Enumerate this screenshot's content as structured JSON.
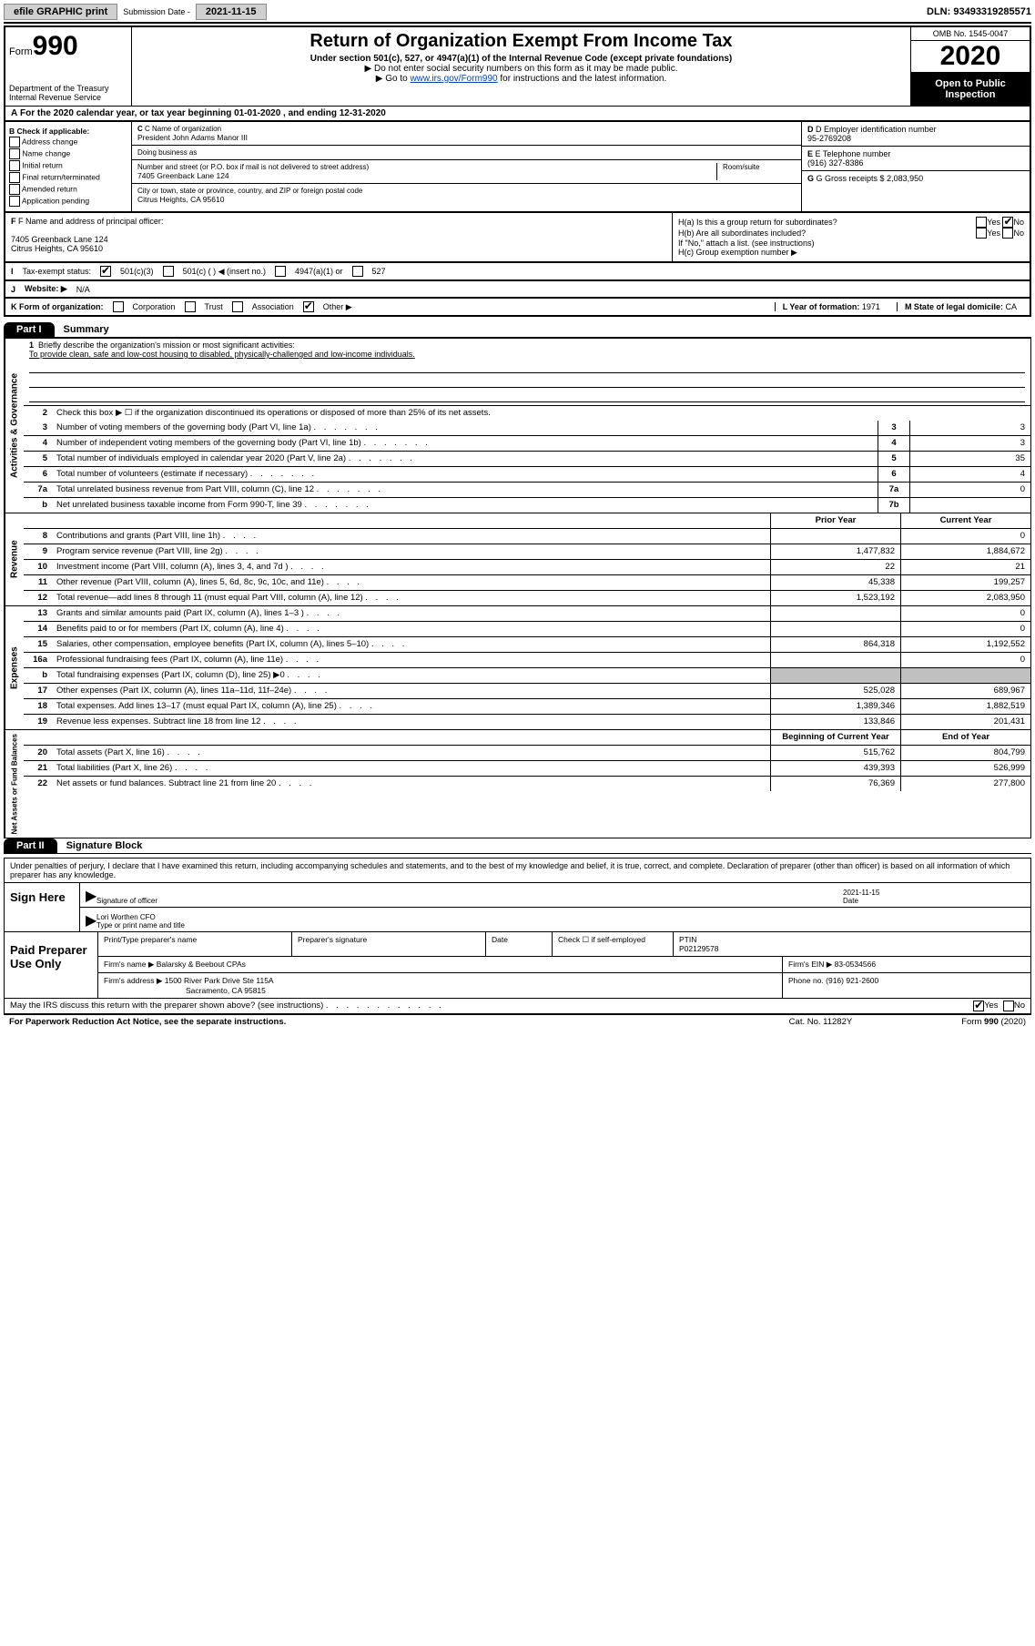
{
  "colors": {
    "black": "#000000",
    "white": "#ffffff",
    "gray_btn": "#d0d0d0",
    "gray_shade": "#c0c0c0",
    "link": "#0645ad"
  },
  "top": {
    "efile": "efile GRAPHIC print",
    "sub_lbl": "Submission Date -",
    "sub_date": "2021-11-15",
    "dln": "DLN: 93493319285571"
  },
  "header": {
    "form_word": "Form",
    "form_num": "990",
    "dept": "Department of the Treasury",
    "irs": "Internal Revenue Service",
    "title": "Return of Organization Exempt From Income Tax",
    "sub1": "Under section 501(c), 527, or 4947(a)(1) of the Internal Revenue Code (except private foundations)",
    "sub2": "▶ Do not enter social security numbers on this form as it may be made public.",
    "sub3a": "▶ Go to ",
    "sub3link": "www.irs.gov/Form990",
    "sub3b": " for instructions and the latest information.",
    "omb": "OMB No. 1545-0047",
    "year": "2020",
    "open": "Open to Public Inspection"
  },
  "row_a": "For the 2020 calendar year, or tax year beginning 01-01-2020   , and ending 12-31-2020",
  "row_a_lbl": "A",
  "col_b": {
    "hdr": "B Check if applicable:",
    "items": [
      "Address change",
      "Name change",
      "Initial return",
      "Final return/terminated",
      "Amended return",
      "Application pending"
    ]
  },
  "name": {
    "c_lbl": "C Name of organization",
    "org": "President John Adams Manor III",
    "dba_lbl": "Doing business as",
    "addr_lbl": "Number and street (or P.O. box if mail is not delivered to street address)",
    "room_lbl": "Room/suite",
    "addr": "7405 Greenback Lane 124",
    "city_lbl": "City or town, state or province, country, and ZIP or foreign postal code",
    "city": "Citrus Heights, CA  95610"
  },
  "right": {
    "d_lbl": "D Employer identification number",
    "ein": "95-2769208",
    "e_lbl": "E Telephone number",
    "phone": "(916) 327-8386",
    "g_lbl": "G Gross receipts $",
    "g_val": "2,083,950"
  },
  "sec_f": {
    "lbl": "F Name and address of principal officer:",
    "addr1": "7405 Greenback Lane 124",
    "addr2": "Citrus Heights, CA  95610"
  },
  "sec_h": {
    "a": "H(a)  Is this a group return for subordinates?",
    "b": "H(b)  Are all subordinates included?",
    "b_note": "If \"No,\" attach a list. (see instructions)",
    "c": "H(c)  Group exemption number ▶",
    "yes": "Yes",
    "no": "No"
  },
  "tax": {
    "lbl": "Tax-exempt status:",
    "o1": "501(c)(3)",
    "o2": "501(c) (  ) ◀ (insert no.)",
    "o3": "4947(a)(1) or",
    "o4": "527"
  },
  "web": {
    "lbl_j": "J",
    "lbl": "Website: ▶",
    "val": "N/A"
  },
  "k": {
    "lbl": "K Form of organization:",
    "corp": "Corporation",
    "trust": "Trust",
    "assoc": "Association",
    "other": "Other ▶",
    "l_lbl": "L Year of formation:",
    "l_val": "1971",
    "m_lbl": "M State of legal domicile:",
    "m_val": "CA"
  },
  "part1": {
    "tab": "Part I",
    "title": "Summary"
  },
  "gov": {
    "q1_lbl": "1",
    "q1": "Briefly describe the organization's mission or most significant activities:",
    "mission": "To provide clean, safe and low-cost housing to disabled, physically-challenged and low-income individuals.",
    "q2_lbl": "2",
    "q2": "Check this box ▶ ☐  if the organization discontinued its operations or disposed of more than 25% of its net assets.",
    "lines": [
      {
        "n": "3",
        "t": "Number of voting members of the governing body (Part VI, line 1a)",
        "box": "3",
        "v": "3"
      },
      {
        "n": "4",
        "t": "Number of independent voting members of the governing body (Part VI, line 1b)",
        "box": "4",
        "v": "3"
      },
      {
        "n": "5",
        "t": "Total number of individuals employed in calendar year 2020 (Part V, line 2a)",
        "box": "5",
        "v": "35"
      },
      {
        "n": "6",
        "t": "Total number of volunteers (estimate if necessary)",
        "box": "6",
        "v": "4"
      },
      {
        "n": "7a",
        "t": "Total unrelated business revenue from Part VIII, column (C), line 12",
        "box": "7a",
        "v": "0"
      },
      {
        "n": "b",
        "t": "Net unrelated business taxable income from Form 990-T, line 39",
        "box": "7b",
        "v": ""
      }
    ]
  },
  "rev": {
    "hdr_prior": "Prior Year",
    "hdr_curr": "Current Year",
    "lines": [
      {
        "n": "8",
        "t": "Contributions and grants (Part VIII, line 1h)",
        "p": "",
        "c": "0"
      },
      {
        "n": "9",
        "t": "Program service revenue (Part VIII, line 2g)",
        "p": "1,477,832",
        "c": "1,884,672"
      },
      {
        "n": "10",
        "t": "Investment income (Part VIII, column (A), lines 3, 4, and 7d )",
        "p": "22",
        "c": "21"
      },
      {
        "n": "11",
        "t": "Other revenue (Part VIII, column (A), lines 5, 6d, 8c, 9c, 10c, and 11e)",
        "p": "45,338",
        "c": "199,257"
      },
      {
        "n": "12",
        "t": "Total revenue—add lines 8 through 11 (must equal Part VIII, column (A), line 12)",
        "p": "1,523,192",
        "c": "2,083,950"
      }
    ]
  },
  "exp": {
    "lines": [
      {
        "n": "13",
        "t": "Grants and similar amounts paid (Part IX, column (A), lines 1–3 )",
        "p": "",
        "c": "0"
      },
      {
        "n": "14",
        "t": "Benefits paid to or for members (Part IX, column (A), line 4)",
        "p": "",
        "c": "0"
      },
      {
        "n": "15",
        "t": "Salaries, other compensation, employee benefits (Part IX, column (A), lines 5–10)",
        "p": "864,318",
        "c": "1,192,552"
      },
      {
        "n": "16a",
        "t": "Professional fundraising fees (Part IX, column (A), line 11e)",
        "p": "",
        "c": "0"
      },
      {
        "n": "b",
        "t": "Total fundraising expenses (Part IX, column (D), line 25) ▶0",
        "p": "SHADE",
        "c": "SHADE"
      },
      {
        "n": "17",
        "t": "Other expenses (Part IX, column (A), lines 11a–11d, 11f–24e)",
        "p": "525,028",
        "c": "689,967"
      },
      {
        "n": "18",
        "t": "Total expenses. Add lines 13–17 (must equal Part IX, column (A), line 25)",
        "p": "1,389,346",
        "c": "1,882,519"
      },
      {
        "n": "19",
        "t": "Revenue less expenses. Subtract line 18 from line 12",
        "p": "133,846",
        "c": "201,431"
      }
    ]
  },
  "net": {
    "hdr_beg": "Beginning of Current Year",
    "hdr_end": "End of Year",
    "lines": [
      {
        "n": "20",
        "t": "Total assets (Part X, line 16)",
        "p": "515,762",
        "c": "804,799"
      },
      {
        "n": "21",
        "t": "Total liabilities (Part X, line 26)",
        "p": "439,393",
        "c": "526,999"
      },
      {
        "n": "22",
        "t": "Net assets or fund balances. Subtract line 21 from line 20",
        "p": "76,369",
        "c": "277,800"
      }
    ]
  },
  "part2": {
    "tab": "Part II",
    "title": "Signature Block"
  },
  "sig": {
    "decl": "Under penalties of perjury, I declare that I have examined this return, including accompanying schedules and statements, and to the best of my knowledge and belief, it is true, correct, and complete. Declaration of preparer (other than officer) is based on all information of which preparer has any knowledge.",
    "sign_here": "Sign Here",
    "sig_officer": "Signature of officer",
    "date_lbl": "Date",
    "date": "2021-11-15",
    "name": "Lori Worthen  CFO",
    "name_lbl": "Type or print name and title"
  },
  "paid": {
    "lbl": "Paid Preparer Use Only",
    "h1": "Print/Type preparer's name",
    "h2": "Preparer's signature",
    "h3": "Date",
    "h4a": "Check ☐ if self-employed",
    "h5": "PTIN",
    "ptin": "P02129578",
    "firm_lbl": "Firm's name    ▶",
    "firm": "Balarsky & Beebout CPAs",
    "ein_lbl": "Firm's EIN ▶",
    "ein": "83-0534566",
    "addr_lbl": "Firm's address ▶",
    "addr1": "1500 River Park Drive Ste 115A",
    "addr2": "Sacramento, CA  95815",
    "phone_lbl": "Phone no.",
    "phone": "(916) 921-2600"
  },
  "discuss": {
    "q": "May the IRS discuss this return with the preparer shown above? (see instructions)",
    "yes": "Yes",
    "no": "No"
  },
  "footer": {
    "l": "For Paperwork Reduction Act Notice, see the separate instructions.",
    "m": "Cat. No. 11282Y",
    "r": "Form 990 (2020)"
  },
  "vlabels": {
    "gov": "Activities & Governance",
    "rev": "Revenue",
    "exp": "Expenses",
    "net": "Net Assets or Fund Balances"
  }
}
